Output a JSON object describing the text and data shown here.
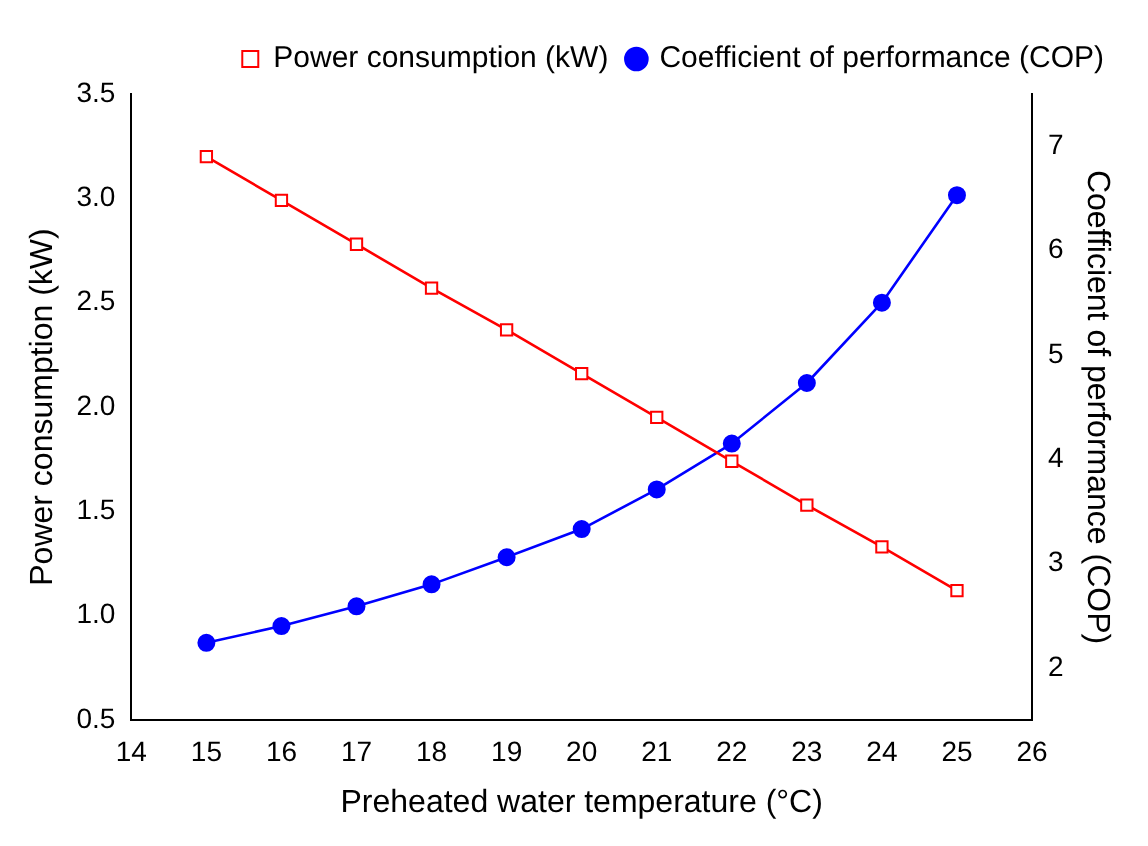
{
  "chart_data": {
    "type": "line",
    "xlabel": "Preheated water temperature (°C)",
    "ylabel": "Power consumption (kW)",
    "y2label": "Coefficient of performance (COP)",
    "x": [
      15,
      16,
      17,
      18,
      19,
      20,
      21,
      22,
      23,
      24,
      25
    ],
    "series": [
      {
        "name": "Power consumption (kW)",
        "color": "#ff0000",
        "marker": "square",
        "values": [
          3.2,
          2.99,
          2.78,
          2.57,
          2.37,
          2.16,
          1.95,
          1.74,
          1.53,
          1.33,
          1.12
        ]
      },
      {
        "name": "Coefficient of performance (COP)",
        "color": "#0000ff",
        "marker": "circle",
        "axis": "y2",
        "values": [
          2.24,
          2.4,
          2.59,
          2.8,
          3.06,
          3.33,
          3.71,
          4.15,
          4.73,
          5.5,
          6.53
        ]
      }
    ],
    "xlim": [
      14,
      26
    ],
    "xticks": [
      14,
      15,
      16,
      17,
      18,
      19,
      20,
      21,
      22,
      23,
      24,
      25,
      26
    ],
    "ylim": [
      0.5,
      3.5
    ],
    "yticks": [
      0.5,
      {
        "value": 1,
        "label": "1.0"
      },
      1.5,
      {
        "value": 2,
        "label": "2.0"
      },
      2.5,
      {
        "value": 3,
        "label": "3.0"
      },
      3.5
    ],
    "y2lim": [
      1.5,
      7.5
    ],
    "y2ticks": [
      2,
      3,
      4,
      5,
      6,
      7
    ],
    "legend": "top right",
    "grid": false,
    "line_style": "solid"
  }
}
